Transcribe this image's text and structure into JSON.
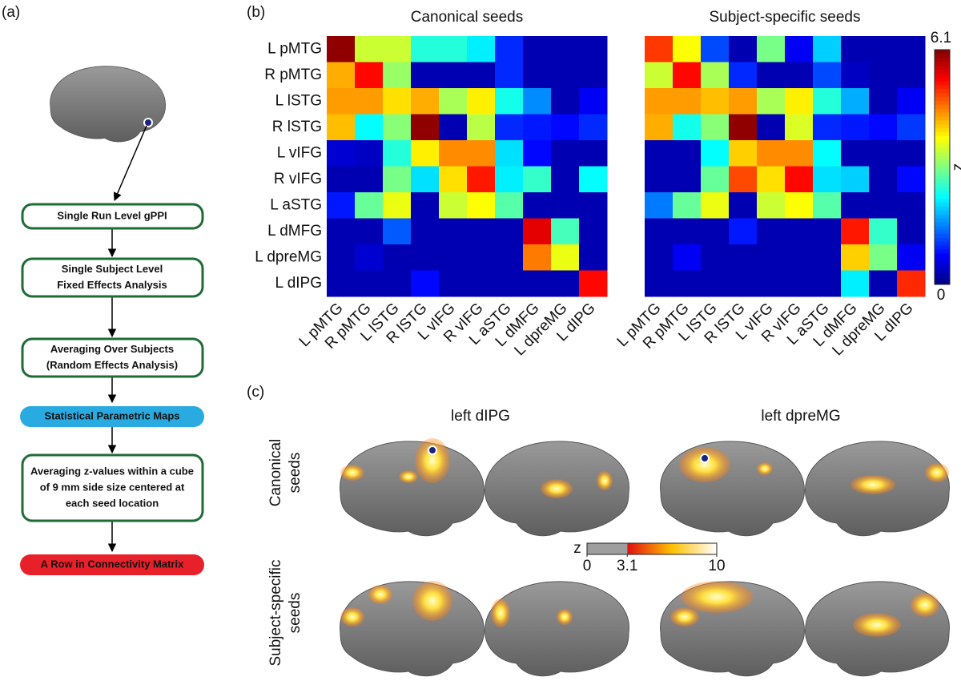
{
  "panels": {
    "a": "(a)",
    "b": "(b)",
    "c": "(c)"
  },
  "flowchart": {
    "steps": [
      {
        "lines": [
          "Single Run Level gPPI"
        ]
      },
      {
        "lines": [
          "Single Subject Level",
          "Fixed Effects Analysis"
        ]
      },
      {
        "lines": [
          "Averaging Over Subjects",
          "(Random Effects Analysis)"
        ]
      },
      {
        "lines": [
          "Statistical Parametric Maps"
        ]
      },
      {
        "lines": [
          "Averaging z-values within a cube",
          "of 9 mm side size centered at",
          "each seed location"
        ]
      },
      {
        "lines": [
          "A Row in Connectivity Matrix"
        ]
      }
    ]
  },
  "chart_data": {
    "type": "heatmap",
    "labels": [
      "L pMTG",
      "R pMTG",
      "L lSTG",
      "R lSTG",
      "L vIFG",
      "R vIFG",
      "L aSTG",
      "L dMFG",
      "L dpreMG",
      "L dIPG"
    ],
    "matrices": [
      {
        "title": "Canonical seeds",
        "values": [
          [
            6.0,
            3.5,
            3.5,
            2.5,
            2.5,
            2.2,
            1.0,
            0.3,
            0.3,
            0.3
          ],
          [
            4.3,
            5.3,
            3.2,
            0.3,
            0.3,
            0.3,
            1.0,
            0.3,
            0.3,
            0.3
          ],
          [
            4.4,
            4.4,
            4.0,
            4.3,
            3.3,
            3.9,
            2.4,
            1.6,
            0.3,
            0.7
          ],
          [
            4.2,
            2.3,
            3.1,
            6.0,
            0.3,
            3.4,
            1.0,
            0.9,
            0.8,
            1.0
          ],
          [
            0.5,
            0.4,
            2.5,
            3.9,
            4.5,
            4.5,
            2.1,
            0.8,
            0.3,
            0.3
          ],
          [
            0.3,
            0.3,
            3.0,
            2.1,
            4.0,
            5.2,
            2.2,
            2.6,
            0.3,
            2.3
          ],
          [
            0.9,
            2.9,
            3.7,
            0.3,
            3.5,
            3.8,
            2.8,
            0.3,
            0.3,
            0.3
          ],
          [
            0.3,
            0.3,
            1.3,
            0.3,
            0.3,
            0.3,
            0.3,
            5.5,
            2.7,
            0.3
          ],
          [
            0.3,
            0.5,
            0.3,
            0.3,
            0.3,
            0.3,
            0.3,
            4.6,
            3.7,
            0.3
          ],
          [
            0.3,
            0.3,
            0.3,
            0.8,
            0.3,
            0.3,
            0.3,
            0.3,
            0.3,
            5.3
          ]
        ]
      },
      {
        "title": "Subject-specific seeds",
        "values": [
          [
            5.0,
            3.8,
            1.2,
            0.3,
            3.0,
            0.7,
            2.0,
            0.3,
            0.3,
            0.3
          ],
          [
            3.5,
            5.3,
            3.3,
            1.0,
            0.3,
            0.3,
            1.2,
            0.4,
            0.3,
            0.3
          ],
          [
            4.4,
            4.4,
            4.2,
            4.4,
            3.3,
            3.9,
            2.5,
            1.8,
            0.3,
            0.7
          ],
          [
            4.3,
            2.4,
            3.1,
            6.0,
            0.3,
            3.6,
            1.0,
            0.9,
            0.8,
            1.1
          ],
          [
            0.3,
            0.3,
            2.3,
            4.1,
            4.5,
            4.5,
            2.3,
            0.3,
            0.3,
            0.3
          ],
          [
            0.3,
            0.3,
            2.9,
            4.9,
            4.0,
            5.3,
            2.1,
            2.0,
            0.3,
            0.8
          ],
          [
            1.5,
            2.9,
            3.7,
            0.3,
            3.5,
            3.8,
            2.8,
            0.3,
            0.3,
            0.3
          ],
          [
            0.3,
            0.3,
            0.3,
            0.9,
            0.3,
            0.3,
            0.3,
            5.2,
            2.6,
            0.3
          ],
          [
            0.3,
            0.7,
            0.3,
            0.3,
            0.3,
            0.3,
            0.3,
            4.1,
            3.0,
            0.7
          ],
          [
            0.3,
            0.3,
            0.3,
            0.3,
            0.3,
            0.3,
            0.3,
            2.2,
            0.3,
            5.1
          ]
        ]
      }
    ],
    "colorbar": {
      "label": "z",
      "zlim": [
        0,
        6.1
      ],
      "zticks": [
        0,
        6.1
      ]
    }
  },
  "brain_maps": {
    "columns": [
      "left dIPG",
      "left dpreMG"
    ],
    "rows": [
      [
        "Canonical",
        "seeds"
      ],
      [
        "Subject-specific",
        "seeds"
      ]
    ],
    "colorbar": {
      "label": "z",
      "zlim": [
        0,
        10
      ],
      "zticks": [
        0,
        3.1,
        10
      ]
    }
  }
}
